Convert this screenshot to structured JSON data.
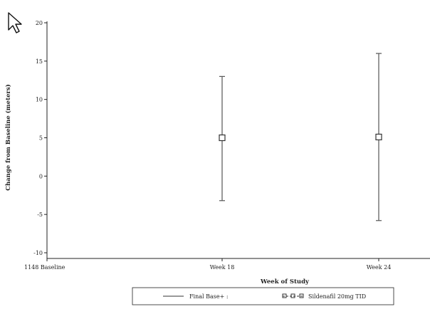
{
  "chart_data": {
    "type": "scatter",
    "title": "",
    "xlabel": "Week of Study",
    "ylabel": "Change from Baseline (meters)",
    "categories": [
      "1148 Baseline",
      "Week 18",
      "Week 24"
    ],
    "ylim": [
      -10,
      20
    ],
    "yticks": [
      "-10",
      "-5",
      "0",
      "5",
      "10",
      "15",
      "20"
    ],
    "grid": false,
    "legend_position": "bottom",
    "series": [
      {
        "name": "Final Base+ :",
        "style": "solid-line",
        "points": []
      },
      {
        "name": "Sildenafil 20mg TID",
        "style": "square-marker-dashed",
        "points": [
          {
            "x": "Week 18",
            "y": 5.0,
            "lower": -3.2,
            "upper": 13.0
          },
          {
            "x": "Week 24",
            "y": 5.1,
            "lower": -5.8,
            "upper": 16.0
          }
        ]
      }
    ],
    "colors": {
      "axis": "#222222",
      "marker": "#333333",
      "errorbar": "#555555"
    }
  },
  "overlay": {
    "cursor_icon": "arrow-cursor-icon"
  }
}
